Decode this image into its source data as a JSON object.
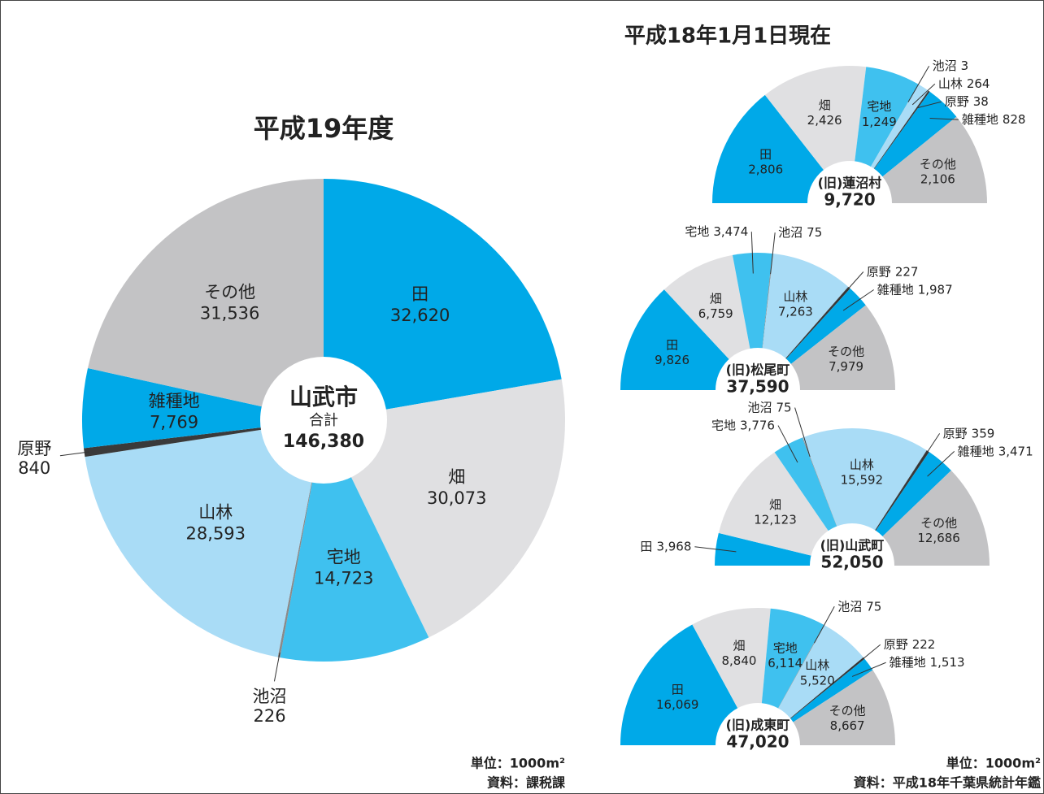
{
  "header": "平成18年1月1日現在",
  "notes": [
    "単位：1000m²",
    "資料：平成18年千葉県統計年鑑"
  ],
  "chart_data": [
    {
      "type": "pie",
      "title": "平成19年度",
      "center_title": "山武市",
      "center_subtitle": "合計",
      "total": {
        "value": 146380,
        "label": "146,380"
      },
      "categories": [
        "田",
        "畑",
        "宅地",
        "池沼",
        "山林",
        "原野",
        "雑種地",
        "その他"
      ],
      "values": [
        32620,
        30073,
        14723,
        226,
        28593,
        840,
        7769,
        31536
      ],
      "value_labels": [
        "32,620",
        "30,073",
        "14,723",
        "226",
        "28,593",
        "840",
        "7,769",
        "31,536"
      ],
      "colors": [
        "#00a9e8",
        "#e0e0e2",
        "#3fc1ef",
        "#8a8a8a",
        "#a9dcf6",
        "#3a3a3a",
        "#00a9e8",
        "#c3c3c5"
      ],
      "notes": [
        "単位：1000m²",
        "資料：課税課"
      ]
    },
    {
      "type": "half-donut",
      "center_title": "(旧)蓮沼村",
      "total": {
        "value": 9720,
        "label": "9,720"
      },
      "categories": [
        "田",
        "畑",
        "宅地",
        "池沼",
        "山林",
        "原野",
        "雑種地",
        "その他"
      ],
      "values": [
        2806,
        2426,
        1249,
        3,
        264,
        38,
        828,
        2106
      ],
      "value_labels": [
        "2,806",
        "2,426",
        "1,249",
        "3",
        "264",
        "38",
        "828",
        "2,106"
      ],
      "colors": [
        "#00a9e8",
        "#e0e0e2",
        "#3fc1ef",
        "#8a8a8a",
        "#a9dcf6",
        "#3a3a3a",
        "#00a9e8",
        "#c3c3c5"
      ]
    },
    {
      "type": "half-donut",
      "center_title": "(旧)松尾町",
      "total": {
        "value": 37590,
        "label": "37,590"
      },
      "categories": [
        "田",
        "畑",
        "宅地",
        "池沼",
        "山林",
        "原野",
        "雑種地",
        "その他"
      ],
      "values": [
        9826,
        6759,
        3474,
        75,
        7263,
        227,
        1987,
        7979
      ],
      "value_labels": [
        "9,826",
        "6,759",
        "3,474",
        "75",
        "7,263",
        "227",
        "1,987",
        "7,979"
      ],
      "colors": [
        "#00a9e8",
        "#e0e0e2",
        "#3fc1ef",
        "#8a8a8a",
        "#a9dcf6",
        "#3a3a3a",
        "#00a9e8",
        "#c3c3c5"
      ]
    },
    {
      "type": "half-donut",
      "center_title": "(旧)山武町",
      "total": {
        "value": 52050,
        "label": "52,050"
      },
      "categories": [
        "田",
        "畑",
        "宅地",
        "池沼",
        "山林",
        "原野",
        "雑種地",
        "その他"
      ],
      "values": [
        3968,
        12123,
        3776,
        75,
        15592,
        359,
        3471,
        12686
      ],
      "value_labels": [
        "3,968",
        "12,123",
        "3,776",
        "75",
        "15,592",
        "359",
        "3,471",
        "12,686"
      ],
      "colors": [
        "#00a9e8",
        "#e0e0e2",
        "#3fc1ef",
        "#8a8a8a",
        "#a9dcf6",
        "#3a3a3a",
        "#00a9e8",
        "#c3c3c5"
      ]
    },
    {
      "type": "half-donut",
      "center_title": "(旧)成東町",
      "total": {
        "value": 47020,
        "label": "47,020"
      },
      "categories": [
        "田",
        "畑",
        "宅地",
        "池沼",
        "山林",
        "原野",
        "雑種地",
        "その他"
      ],
      "values": [
        16069,
        8840,
        6114,
        75,
        5520,
        222,
        1513,
        8667
      ],
      "value_labels": [
        "16,069",
        "8,840",
        "6,114",
        "75",
        "5,520",
        "222",
        "1,513",
        "8,667"
      ],
      "colors": [
        "#00a9e8",
        "#e0e0e2",
        "#3fc1ef",
        "#8a8a8a",
        "#a9dcf6",
        "#3a3a3a",
        "#00a9e8",
        "#c3c3c5"
      ]
    }
  ]
}
